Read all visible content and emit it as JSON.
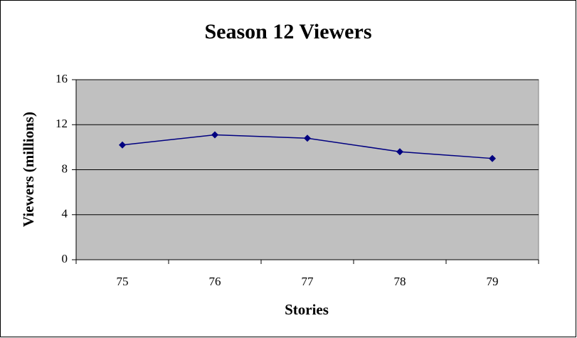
{
  "chart_data": {
    "type": "line",
    "title": "Season 12 Viewers",
    "x_label": "Stories",
    "y_label": "Viewers (millions)",
    "categories": [
      "75",
      "76",
      "77",
      "78",
      "79"
    ],
    "values": [
      10.2,
      11.1,
      10.8,
      9.6,
      9.0
    ],
    "color": "#000080",
    "ylim": [
      0,
      16
    ],
    "yticks": [
      0,
      4,
      8,
      12,
      16
    ],
    "grid": true
  }
}
